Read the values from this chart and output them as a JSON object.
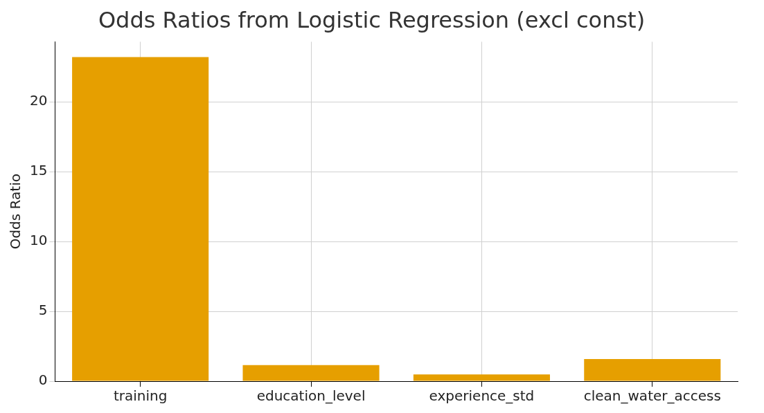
{
  "chart_data": {
    "type": "bar",
    "title": "Odds Ratios from Logistic Regression (excl const)",
    "ylabel": "Odds Ratio",
    "categories": [
      "training",
      "education_level",
      "experience_std",
      "clean_water_access"
    ],
    "values": [
      23.2,
      1.15,
      0.48,
      1.59
    ],
    "color": "#e69f00",
    "ylim": [
      0,
      24.3
    ],
    "yticks": [
      0,
      5,
      10,
      15,
      20
    ],
    "grid": true
  }
}
